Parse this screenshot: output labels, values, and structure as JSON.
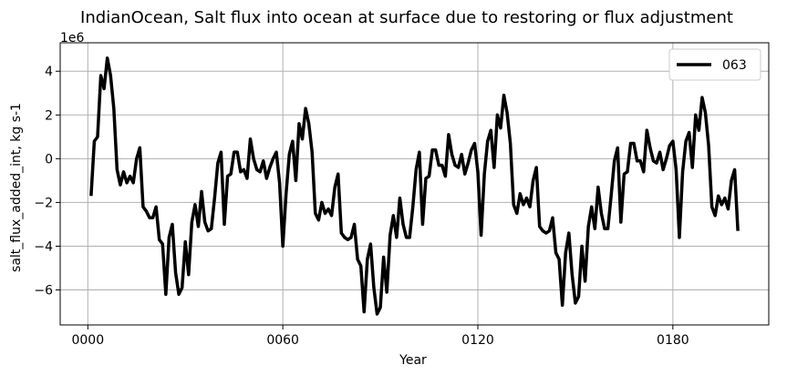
{
  "chart_data": {
    "type": "line",
    "title": "IndianOcean, Salt flux into ocean at surface due to restoring or flux adjustment",
    "xlabel": "Year",
    "ylabel": "salt_flux_added_int, kg s-1",
    "y_offset_label": "1e6",
    "y_scale_factor": 1000000,
    "xlim": [
      -8.5,
      209.5
    ],
    "ylim": [
      -7.6,
      5.3
    ],
    "x_ticks": [
      0,
      60,
      120,
      180
    ],
    "x_tick_labels": [
      "0000",
      "0060",
      "0120",
      "0180"
    ],
    "y_ticks": [
      -6,
      -4,
      -2,
      0,
      2,
      4
    ],
    "y_tick_labels": [
      "−6",
      "−4",
      "−2",
      "0",
      "2",
      "4"
    ],
    "grid": true,
    "legend_position": "top-right",
    "colors": {
      "series": "#000000",
      "grid": "#b0b0b0",
      "background": "#ffffff"
    },
    "series": [
      {
        "name": "063",
        "x": [
          1,
          2,
          3,
          4,
          5,
          6,
          7,
          8,
          9,
          10,
          11,
          12,
          13,
          14,
          15,
          16,
          17,
          18,
          19,
          20,
          21,
          22,
          23,
          24,
          25,
          26,
          27,
          28,
          29,
          30,
          31,
          32,
          33,
          34,
          35,
          36,
          37,
          38,
          39,
          40,
          41,
          42,
          43,
          44,
          45,
          46,
          47,
          48,
          49,
          50,
          51,
          52,
          53,
          54,
          55,
          56,
          57,
          58,
          59,
          60,
          61,
          62,
          63,
          64,
          65,
          66,
          67,
          68,
          69,
          70,
          71,
          72,
          73,
          74,
          75,
          76,
          77,
          78,
          79,
          80,
          81,
          82,
          83,
          84,
          85,
          86,
          87,
          88,
          89,
          90,
          91,
          92,
          93,
          94,
          95,
          96,
          97,
          98,
          99,
          100,
          101,
          102,
          103,
          104,
          105,
          106,
          107,
          108,
          109,
          110,
          111,
          112,
          113,
          114,
          115,
          116,
          117,
          118,
          119,
          120,
          121,
          122,
          123,
          124,
          125,
          126,
          127,
          128,
          129,
          130,
          131,
          132,
          133,
          134,
          135,
          136,
          137,
          138,
          139,
          140,
          141,
          142,
          143,
          144,
          145,
          146,
          147,
          148,
          149,
          150,
          151,
          152,
          153,
          154,
          155,
          156,
          157,
          158,
          159,
          160,
          161,
          162,
          163,
          164,
          165,
          166,
          167,
          168,
          169,
          170,
          171,
          172,
          173,
          174,
          175,
          176,
          177,
          178,
          179,
          180,
          181,
          182,
          183,
          184,
          185,
          186,
          187,
          188,
          189,
          190,
          191,
          192,
          193,
          194,
          195,
          196,
          197,
          198,
          199,
          200
        ],
        "values": [
          -1.7,
          0.8,
          1.0,
          3.8,
          3.2,
          4.6,
          3.8,
          2.3,
          -0.5,
          -1.2,
          -0.6,
          -1.1,
          -0.8,
          -1.1,
          0.0,
          0.5,
          -2.2,
          -2.4,
          -2.7,
          -2.7,
          -2.2,
          -3.7,
          -3.9,
          -6.2,
          -3.6,
          -3.0,
          -5.2,
          -6.2,
          -5.9,
          -3.8,
          -5.3,
          -2.9,
          -2.1,
          -3.1,
          -1.5,
          -2.9,
          -3.3,
          -3.2,
          -1.8,
          -0.2,
          0.3,
          -3.0,
          -0.8,
          -0.7,
          0.3,
          0.3,
          -0.6,
          -0.5,
          -0.9,
          0.9,
          0.0,
          -0.5,
          -0.6,
          -0.1,
          -0.9,
          -0.4,
          0.0,
          0.3,
          -1.1,
          -4.0,
          -1.6,
          0.2,
          0.8,
          -1.0,
          1.6,
          0.9,
          2.3,
          1.6,
          0.3,
          -2.5,
          -2.8,
          -2.0,
          -2.5,
          -2.3,
          -2.6,
          -1.3,
          -0.7,
          -3.4,
          -3.6,
          -3.7,
          -3.6,
          -3.0,
          -4.6,
          -4.9,
          -7.0,
          -4.6,
          -3.9,
          -5.9,
          -7.1,
          -6.8,
          -4.5,
          -6.1,
          -3.5,
          -2.6,
          -3.6,
          -1.8,
          -3.0,
          -3.6,
          -3.6,
          -2.2,
          -0.5,
          0.3,
          -3.0,
          -0.9,
          -0.8,
          0.4,
          0.4,
          -0.3,
          -0.3,
          -0.8,
          1.1,
          0.2,
          -0.3,
          -0.4,
          0.2,
          -0.7,
          -0.2,
          0.4,
          0.7,
          -0.6,
          -3.5,
          -0.7,
          0.8,
          1.3,
          -0.4,
          2.0,
          1.4,
          2.9,
          2.1,
          0.7,
          -2.1,
          -2.5,
          -1.6,
          -2.1,
          -1.8,
          -2.2,
          -1.0,
          -0.4,
          -3.1,
          -3.3,
          -3.4,
          -3.3,
          -2.7,
          -4.3,
          -4.6,
          -6.7,
          -4.3,
          -3.4,
          -5.3,
          -6.6,
          -6.3,
          -4.0,
          -5.6,
          -3.1,
          -2.2,
          -3.2,
          -1.3,
          -2.5,
          -3.2,
          -3.2,
          -1.7,
          -0.1,
          0.5,
          -2.9,
          -0.7,
          -0.6,
          0.7,
          0.7,
          -0.1,
          -0.1,
          -0.6,
          1.3,
          0.5,
          -0.1,
          -0.2,
          0.3,
          -0.5,
          0.0,
          0.6,
          0.8,
          -0.5,
          -3.6,
          -0.6,
          0.8,
          1.2,
          -0.4,
          2.0,
          1.3,
          2.8,
          2.1,
          0.6,
          -2.2,
          -2.6,
          -1.7,
          -2.1,
          -1.8,
          -2.3,
          -1.0,
          -0.5,
          -3.3
        ]
      }
    ]
  }
}
